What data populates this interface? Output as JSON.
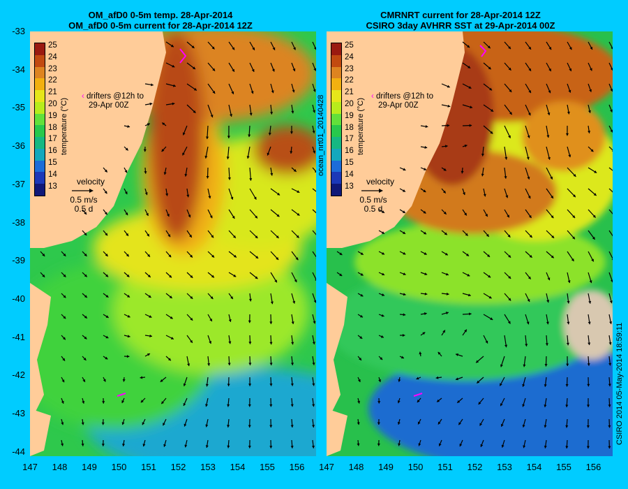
{
  "left_panel": {
    "title_line1": "OM_afD0 0-5m temp. 28-Apr-2014",
    "title_line2": "OM_afD0 0-5m current for 28-Apr-2014 12Z"
  },
  "right_panel": {
    "title_line1": "CMRNRT current for 28-Apr-2014 12Z",
    "title_line2": "CSIRO 3day AVHRR SST at 29-Apr-2014 00Z"
  },
  "colorbar": {
    "label": "temperature (°C)",
    "ticks": [
      "25",
      "24",
      "23",
      "22",
      "21",
      "20",
      "19",
      "18",
      "17",
      "16",
      "15",
      "14",
      "13"
    ],
    "colors": [
      "#9a1a10",
      "#c24a10",
      "#de8420",
      "#f2b010",
      "#e6e61a",
      "#b8ec1c",
      "#62e03a",
      "#28c84c",
      "#16b882",
      "#14a8bc",
      "#1c6cd8",
      "#1c38b8",
      "#101878"
    ]
  },
  "legend": {
    "drifters_line1": "drifters @12h to",
    "drifters_line2": "29-Apr 00Z",
    "velocity_label": "velocity",
    "speed": "0.5 m/s",
    "duration": "0.5 d"
  },
  "y_ticks": [
    "-33",
    "-34",
    "-35",
    "-36",
    "-37",
    "-38",
    "-39",
    "-40",
    "-41",
    "-42",
    "-43",
    "-44"
  ],
  "x_ticks": [
    "147",
    "148",
    "149",
    "150",
    "151",
    "152",
    "153",
    "154",
    "155",
    "156"
  ],
  "vertical_center": "ocean_nrt01_20140428",
  "vertical_right": "CSIRO 2014  05-May-2014 18:59:11",
  "colors": {
    "background": "#00ccff",
    "land": "#ffcc99",
    "drifter": "#ff00ff"
  }
}
